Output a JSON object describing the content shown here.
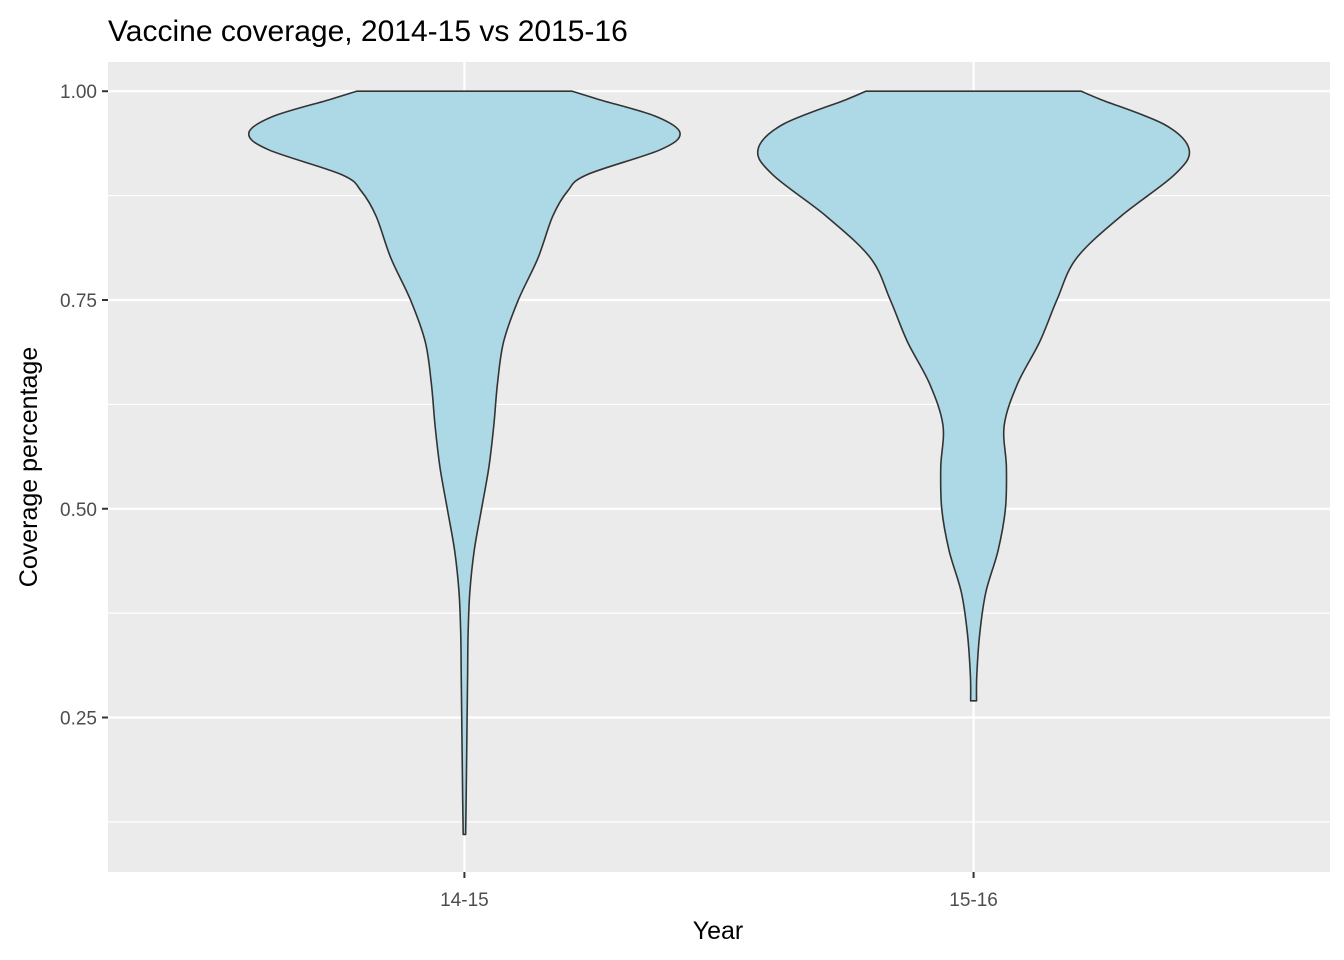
{
  "chart_data": {
    "type": "violin",
    "title": "Vaccine coverage, 2014-15 vs 2015-16",
    "xlabel": "Year",
    "ylabel": "Coverage percentage",
    "categories": [
      "14-15",
      "15-16"
    ],
    "ylim": [
      0.065,
      1.035
    ],
    "yticks": [
      0.25,
      0.5,
      0.75,
      1.0
    ],
    "ytick_labels": [
      "0.25",
      "0.50",
      "0.75",
      "1.00"
    ],
    "grid": true,
    "legend": "none",
    "colors": {
      "fill": "#add8e6",
      "outline": "#333333",
      "panel": "#ebebeb",
      "grid": "#ffffff"
    },
    "series": [
      {
        "category": "14-15",
        "min": 0.11,
        "max": 1.0,
        "density_profile": [
          [
            0.11,
            0.005
          ],
          [
            0.15,
            0.007
          ],
          [
            0.2,
            0.009
          ],
          [
            0.25,
            0.011
          ],
          [
            0.3,
            0.013
          ],
          [
            0.35,
            0.015
          ],
          [
            0.4,
            0.022
          ],
          [
            0.45,
            0.04
          ],
          [
            0.5,
            0.07
          ],
          [
            0.55,
            0.1
          ],
          [
            0.6,
            0.12
          ],
          [
            0.65,
            0.135
          ],
          [
            0.7,
            0.16
          ],
          [
            0.75,
            0.22
          ],
          [
            0.8,
            0.3
          ],
          [
            0.85,
            0.36
          ],
          [
            0.88,
            0.42
          ],
          [
            0.9,
            0.5
          ],
          [
            0.93,
            0.8
          ],
          [
            0.95,
            0.88
          ],
          [
            0.97,
            0.78
          ],
          [
            0.99,
            0.55
          ],
          [
            1.0,
            0.44
          ]
        ]
      },
      {
        "category": "15-16",
        "min": 0.27,
        "max": 1.0,
        "density_profile": [
          [
            0.27,
            0.012
          ],
          [
            0.3,
            0.013
          ],
          [
            0.35,
            0.025
          ],
          [
            0.4,
            0.05
          ],
          [
            0.45,
            0.1
          ],
          [
            0.5,
            0.13
          ],
          [
            0.55,
            0.134
          ],
          [
            0.6,
            0.125
          ],
          [
            0.65,
            0.18
          ],
          [
            0.7,
            0.27
          ],
          [
            0.75,
            0.34
          ],
          [
            0.8,
            0.42
          ],
          [
            0.85,
            0.6
          ],
          [
            0.9,
            0.82
          ],
          [
            0.93,
            0.88
          ],
          [
            0.96,
            0.78
          ],
          [
            0.99,
            0.52
          ],
          [
            1.0,
            0.44
          ]
        ]
      }
    ]
  }
}
